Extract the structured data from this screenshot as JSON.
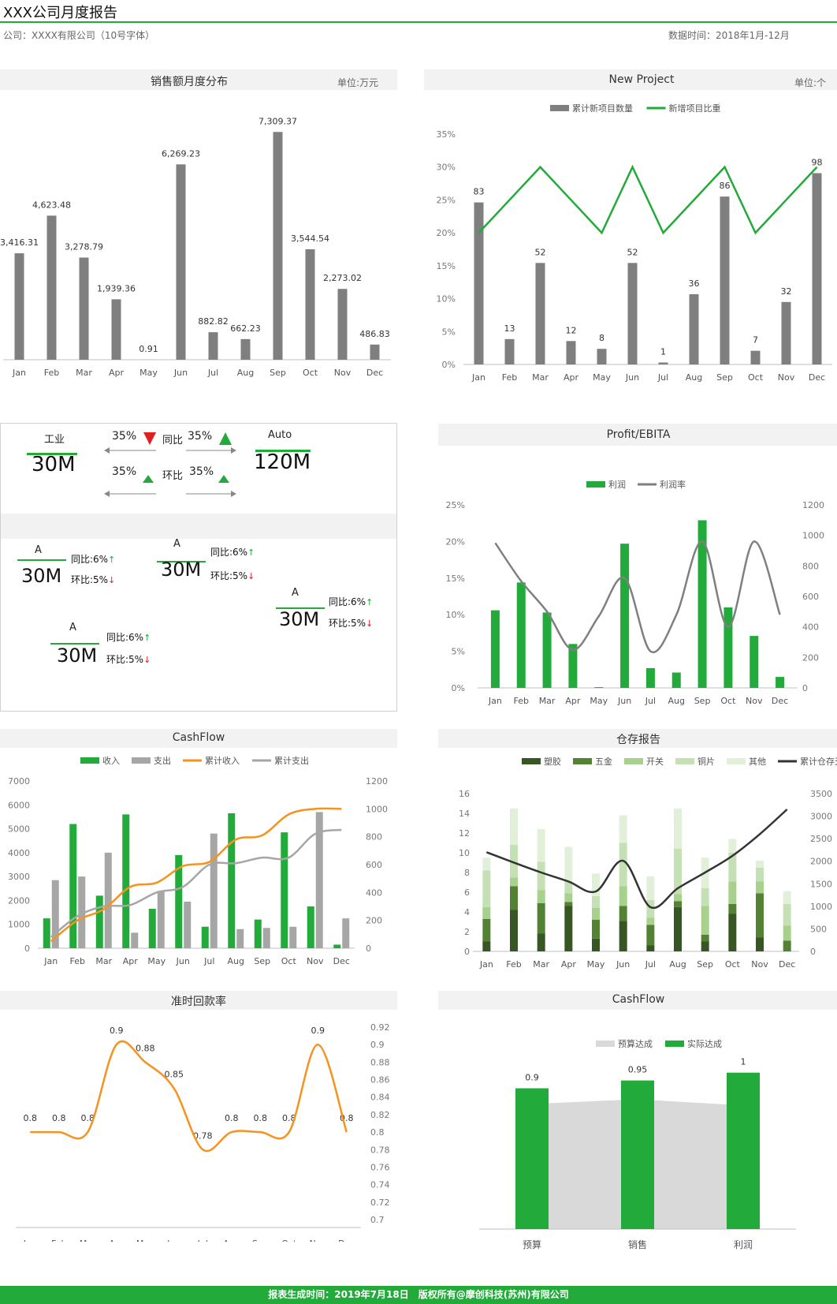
{
  "header": {
    "title": "XXX公司月度报告",
    "company": "公司：XXXX有限公司（10号字体）",
    "date_range": "数据时间：2018年1月-12月"
  },
  "footer": {
    "text": "报表生成时间：2019年7月18日　版权所有@摩创科技(苏州)有限公司"
  },
  "colors": {
    "green": "#22aa3a",
    "gray": "#7f7f7f",
    "orange": "#f5931e",
    "lightgray": "#d9d9d9"
  },
  "kpi": {
    "left_label": "工业",
    "left_value": "30M",
    "right_label": "Auto",
    "right_value": "120M",
    "yoy_label": "同比",
    "mom_label": "环比",
    "pct1": "35%",
    "pct2": "35%",
    "pct3": "35%",
    "pct4": "35%",
    "cards": [
      {
        "label": "A",
        "value": "30M",
        "yoy": "同比:6%",
        "mom": "环比:5%"
      },
      {
        "label": "A",
        "value": "30M",
        "yoy": "同比:6%",
        "mom": "环比:5%"
      },
      {
        "label": "A",
        "value": "30M",
        "yoy": "同比:6%",
        "mom": "环比:5%"
      },
      {
        "label": "A",
        "value": "30M",
        "yoy": "同比:6%",
        "mom": "环比:5%"
      }
    ]
  },
  "chart_data": [
    {
      "id": "sales",
      "type": "bar",
      "title": "销售额月度分布",
      "unit": "单位:万元",
      "categories": [
        "Jan",
        "Feb",
        "Mar",
        "Apr",
        "May",
        "Jun",
        "Jul",
        "Aug",
        "Sep",
        "Oct",
        "Nov",
        "Dec"
      ],
      "values": [
        3416.31,
        4623.48,
        3278.79,
        1939.36,
        0.91,
        6269.23,
        882.82,
        662.23,
        7309.37,
        3544.54,
        2273.02,
        486.83
      ],
      "data_labels": [
        "3,416.31",
        "4,623.48",
        "3,278.79",
        "1,939.36",
        "0.91",
        "6,269.23",
        "882.82",
        "662.23",
        "7,309.37",
        "3,544.54",
        "2,273.02",
        "486.83"
      ],
      "ylim": [
        0,
        8000
      ]
    },
    {
      "id": "newproject",
      "type": "bar",
      "title": "New Project",
      "unit": "单位:个",
      "categories": [
        "Jan",
        "Feb",
        "Mar",
        "Apr",
        "May",
        "Jun",
        "Jul",
        "Aug",
        "Sep",
        "Oct",
        "Nov",
        "Dec"
      ],
      "series": [
        {
          "name": "累计新项目数量",
          "type": "bar",
          "values": [
            83,
            13,
            52,
            12,
            8,
            52,
            1,
            36,
            86,
            7,
            32,
            98
          ]
        },
        {
          "name": "新增项目比重",
          "type": "line",
          "values": [
            0.2,
            0.25,
            0.3,
            0.25,
            0.2,
            0.3,
            0.2,
            0.25,
            0.3,
            0.2,
            0.25,
            0.3
          ]
        }
      ],
      "y_ticks": [
        "0%",
        "5%",
        "10%",
        "15%",
        "20%",
        "25%",
        "30%",
        "35%"
      ],
      "ylim": [
        0,
        0.35
      ],
      "bar_ylim": [
        0,
        118
      ]
    },
    {
      "id": "profit",
      "type": "bar",
      "title": "Profit/EBITA",
      "categories": [
        "Jan",
        "Feb",
        "Mar",
        "Apr",
        "May",
        "Jun",
        "Jul",
        "Aug",
        "Sep",
        "Oct",
        "Nov",
        "Dec"
      ],
      "series": [
        {
          "name": "利润",
          "type": "bar",
          "values": [
            0.106,
            0.144,
            0.103,
            0.06,
            0.001,
            0.197,
            0.027,
            0.021,
            0.229,
            0.11,
            0.071,
            0.015
          ]
        },
        {
          "name": "利润率",
          "type": "line",
          "values": [
            950,
            700,
            500,
            250,
            470,
            720,
            240,
            480,
            960,
            400,
            960,
            480
          ]
        }
      ],
      "y_ticks": [
        "0%",
        "5%",
        "10%",
        "15%",
        "20%",
        "25%"
      ],
      "y2_ticks": [
        "0",
        "200",
        "400",
        "600",
        "800",
        "1000",
        "1200"
      ],
      "ylim": [
        0,
        0.25
      ],
      "y2lim": [
        0,
        1200
      ]
    },
    {
      "id": "cashflow",
      "type": "bar",
      "title": "CashFlow",
      "categories": [
        "Jan",
        "Feb",
        "Mar",
        "Apr",
        "May",
        "Jun",
        "Jul",
        "Aug",
        "Sep",
        "Oct",
        "Nov",
        "Dec"
      ],
      "series": [
        {
          "name": "收入",
          "type": "bar",
          "values": [
            1250,
            5200,
            2200,
            5600,
            1650,
            3900,
            900,
            5650,
            1200,
            4850,
            1750,
            150
          ]
        },
        {
          "name": "支出",
          "type": "bar",
          "values": [
            2850,
            3000,
            4000,
            650,
            2400,
            1950,
            4800,
            800,
            850,
            900,
            5700,
            1250
          ]
        },
        {
          "name": "累计收入",
          "type": "line",
          "values": [
            50,
            200,
            280,
            440,
            470,
            590,
            620,
            780,
            810,
            960,
            1000,
            1000
          ]
        },
        {
          "name": "累计支出",
          "type": "line",
          "values": [
            80,
            230,
            300,
            310,
            400,
            440,
            600,
            610,
            650,
            650,
            820,
            850
          ]
        }
      ],
      "y_ticks": [
        "0",
        "1000",
        "2000",
        "3000",
        "4000",
        "5000",
        "6000",
        "7000"
      ],
      "y2_ticks": [
        "0",
        "200",
        "400",
        "600",
        "800",
        "1000",
        "1200"
      ],
      "ylim": [
        0,
        7000
      ],
      "y2lim": [
        0,
        1200
      ]
    },
    {
      "id": "warehouse",
      "type": "bar",
      "title": "仓存报告",
      "categories": [
        "Jan",
        "Feb",
        "Mar",
        "Apr",
        "May",
        "Jun",
        "Jul",
        "Aug",
        "Sep",
        "Oct",
        "Nov",
        "Dec"
      ],
      "series": [
        {
          "name": "塑胶",
          "type": "bar",
          "values": [
            1.0,
            4.2,
            1.8,
            4.6,
            1.3,
            3.1,
            0.6,
            4.5,
            1.0,
            3.8,
            1.4,
            0.0
          ]
        },
        {
          "name": "五金",
          "type": "bar",
          "values": [
            2.3,
            2.4,
            3.1,
            0.4,
            1.9,
            1.5,
            2.1,
            0.6,
            0.7,
            1.0,
            4.5,
            1.1
          ]
        },
        {
          "name": "开关",
          "type": "bar",
          "values": [
            1.2,
            0.9,
            1.3,
            0.9,
            1.2,
            2.0,
            0.7,
            0.7,
            2.9,
            2.3,
            1.2,
            1.5
          ]
        },
        {
          "name": "铜片",
          "type": "bar",
          "values": [
            3.7,
            3.3,
            2.9,
            1.2,
            1.2,
            4.4,
            1.8,
            4.6,
            1.8,
            2.9,
            1.4,
            2.2
          ]
        },
        {
          "name": "其他",
          "type": "bar",
          "values": [
            1.3,
            3.7,
            3.3,
            3.5,
            2.3,
            2.8,
            2.4,
            4.1,
            3.1,
            1.4,
            0.7,
            1.3
          ]
        },
        {
          "name": "累计仓存天数",
          "type": "line",
          "values": [
            2200,
            1970,
            1750,
            1550,
            1330,
            2010,
            980,
            1400,
            1750,
            2120,
            2600,
            3150
          ]
        }
      ],
      "y_ticks": [
        "0",
        "2",
        "4",
        "6",
        "8",
        "10",
        "12",
        "14",
        "16"
      ],
      "y2_ticks": [
        "0",
        "500",
        "1000",
        "1500",
        "2000",
        "2500",
        "3000",
        "3500"
      ],
      "ylim": [
        0,
        16
      ],
      "y2lim": [
        0,
        3500
      ]
    },
    {
      "id": "ontime",
      "type": "line",
      "title": "准时回款率",
      "categories": [
        "Jan",
        "Feb",
        "Mar",
        "Apr",
        "May",
        "Jun",
        "Jul",
        "Aug",
        "Sep",
        "Oct",
        "Nov",
        "Dec"
      ],
      "values": [
        0.8,
        0.8,
        0.8,
        0.9,
        0.88,
        0.85,
        0.78,
        0.8,
        0.8,
        0.8,
        0.9,
        0.8
      ],
      "y2_ticks": [
        "0.7",
        "0.72",
        "0.74",
        "0.76",
        "0.78",
        "0.8",
        "0.82",
        "0.84",
        "0.86",
        "0.88",
        "0.9",
        "0.92"
      ],
      "ylim": [
        0.7,
        0.92
      ]
    },
    {
      "id": "budget",
      "type": "bar",
      "title": "CashFlow",
      "categories": [
        "预算",
        "销售",
        "利润"
      ],
      "series": [
        {
          "name": "预算达成",
          "type": "area",
          "values": [
            0.8,
            0.83,
            0.79
          ]
        },
        {
          "name": "实际达成",
          "type": "bar",
          "values": [
            0.9,
            0.95,
            1
          ]
        }
      ],
      "data_labels": [
        "0.9",
        "0.95",
        "1"
      ],
      "ylim": [
        0,
        1.15
      ]
    }
  ]
}
